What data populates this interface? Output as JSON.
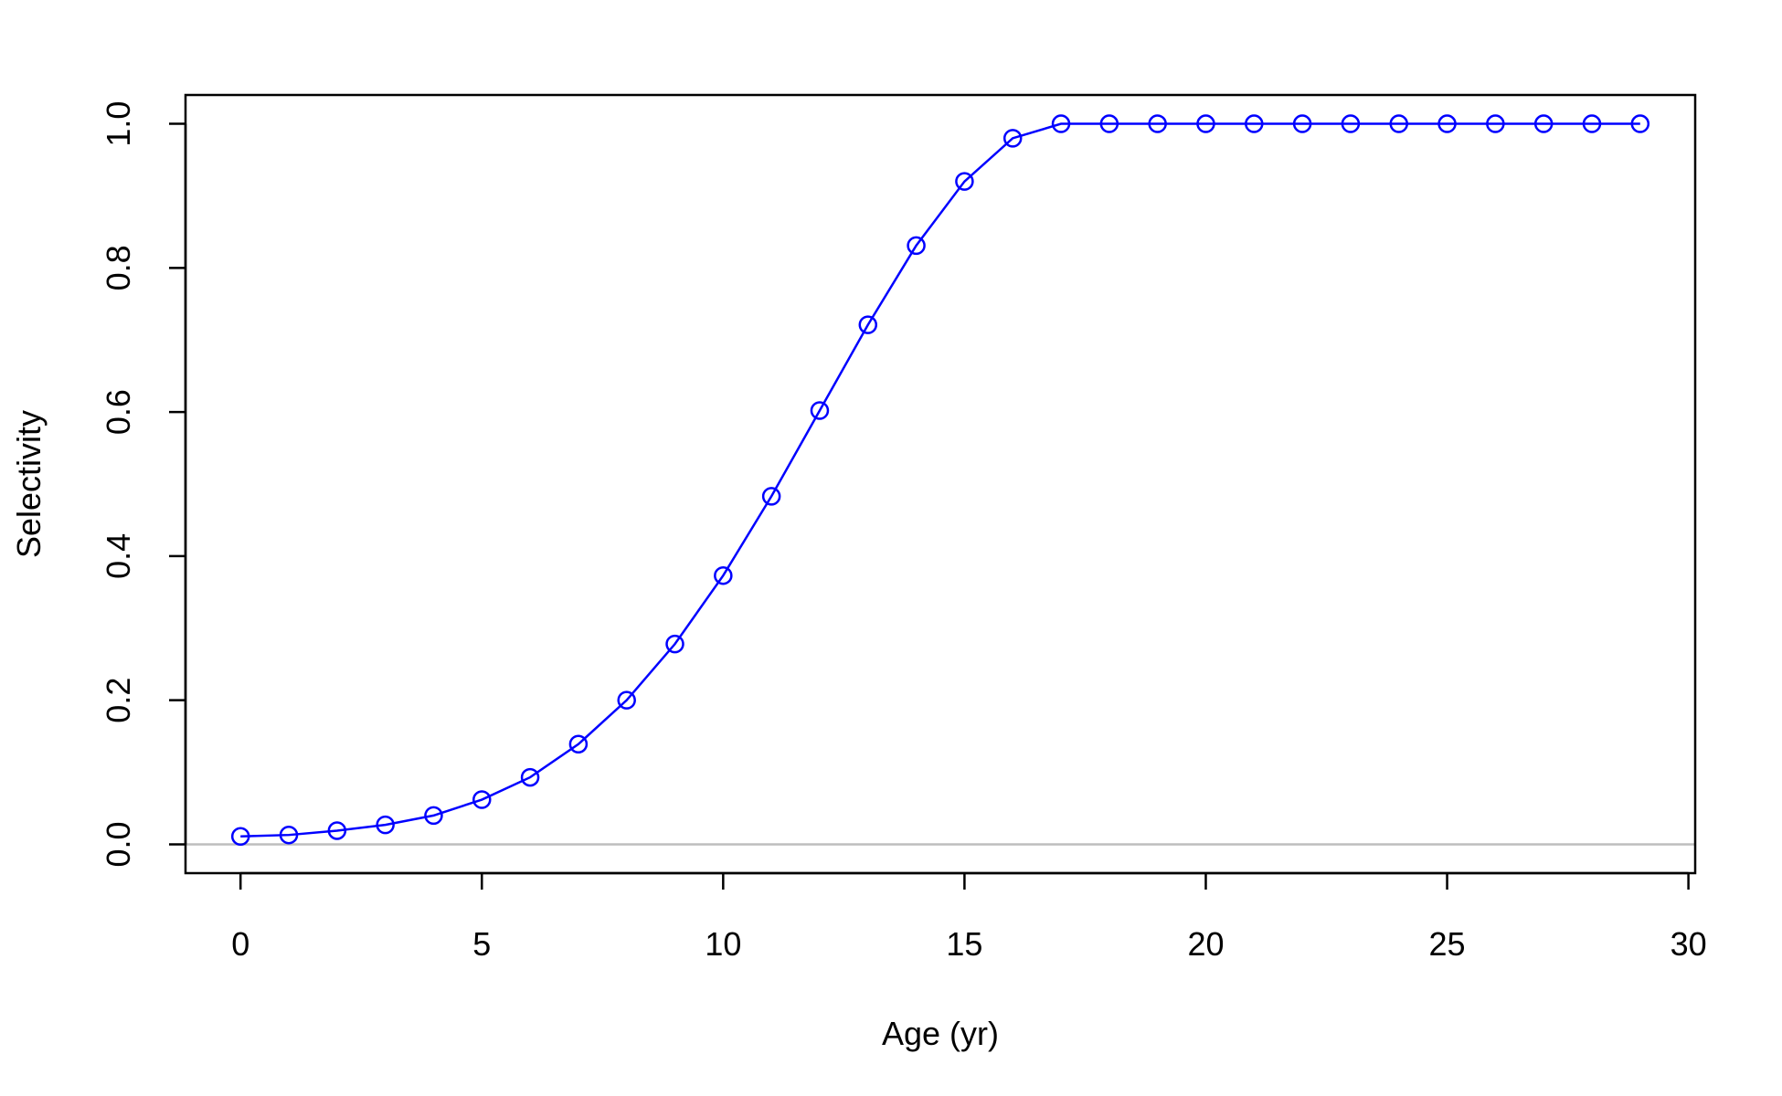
{
  "chart_data": {
    "type": "line",
    "title": "",
    "xlabel": "Age (yr)",
    "ylabel": "Selectivity",
    "xlim": [
      -1.14,
      30.14
    ],
    "ylim": [
      -0.04,
      1.04
    ],
    "x_ticks": [
      0,
      5,
      10,
      15,
      20,
      25,
      30
    ],
    "y_ticks": [
      0.0,
      0.2,
      0.4,
      0.6,
      0.8,
      1.0
    ],
    "y_tick_labels": [
      "0.0",
      "0.2",
      "0.4",
      "0.6",
      "0.8",
      "1.0"
    ],
    "grid": false,
    "reference_line_y": 0,
    "reference_line_color": "#bebebe",
    "series": [
      {
        "color": "#0000ff",
        "marker": "open-circle",
        "x": [
          0,
          1,
          2,
          3,
          4,
          5,
          6,
          7,
          8,
          9,
          10,
          11,
          12,
          13,
          14,
          15,
          16,
          17,
          18,
          19,
          20,
          21,
          22,
          23,
          24,
          25,
          26,
          27,
          28,
          29
        ],
        "y": [
          0.011,
          0.013,
          0.019,
          0.027,
          0.04,
          0.062,
          0.093,
          0.139,
          0.2,
          0.278,
          0.373,
          0.483,
          0.602,
          0.721,
          0.831,
          0.92,
          0.98,
          1,
          1,
          1,
          1,
          1,
          1,
          1,
          1,
          1,
          1,
          1,
          1,
          1
        ]
      }
    ]
  }
}
